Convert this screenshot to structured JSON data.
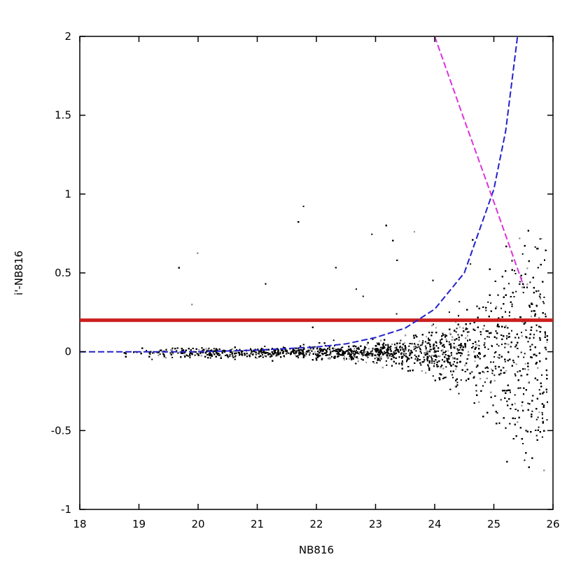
{
  "chart_data": {
    "type": "scatter",
    "title": "",
    "xlabel": "NB816",
    "ylabel": "i'-NB816",
    "xlim": [
      18,
      26
    ],
    "ylim": [
      -1,
      2
    ],
    "xticks": [
      18,
      19,
      20,
      21,
      22,
      23,
      24,
      25,
      26
    ],
    "xtick_labels": [
      "18",
      "19",
      "20",
      "21",
      "22",
      "23",
      "24",
      "25",
      "26"
    ],
    "yticks": [
      -1,
      -0.5,
      0,
      0.5,
      1,
      1.5,
      2
    ],
    "ytick_labels": [
      "-1",
      "-0.5",
      "0",
      "0.5",
      "1",
      "1.5",
      "2"
    ],
    "grid": false,
    "legend": "none",
    "series": [
      {
        "kind": "scatter",
        "color": "#000000",
        "description_only": true,
        "points_sample": [
          [
            19.0,
            0.01
          ],
          [
            19.5,
            0.03
          ],
          [
            20.0,
            -0.01
          ],
          [
            20.5,
            0.02
          ],
          [
            21.0,
            -0.02
          ],
          [
            21.5,
            0.05
          ],
          [
            22.0,
            0.0
          ],
          [
            22.5,
            -0.04
          ],
          [
            23.0,
            0.03
          ],
          [
            23.5,
            -0.06
          ],
          [
            24.0,
            0.08
          ],
          [
            24.5,
            -0.1
          ],
          [
            25.0,
            0.12
          ],
          [
            25.2,
            -0.3
          ],
          [
            23.8,
            0.3
          ],
          [
            24.3,
            0.35
          ],
          [
            24.9,
            0.45
          ],
          [
            22.7,
            0.25
          ],
          [
            25.5,
            -0.5
          ],
          [
            25.7,
            0.4
          ]
        ]
      },
      {
        "kind": "hline",
        "color": "#cc1f1f",
        "y": 0.2
      },
      {
        "kind": "line",
        "color": "#2222cc",
        "dashed": true,
        "x": [
          18,
          19,
          20,
          21,
          22,
          22.5,
          23,
          23.5,
          24,
          24.5,
          25,
          25.2,
          25.4
        ],
        "y": [
          0.0,
          0.0,
          0.0,
          0.01,
          0.03,
          0.05,
          0.09,
          0.15,
          0.27,
          0.5,
          1.03,
          1.4,
          2.0
        ]
      },
      {
        "kind": "line",
        "color": "#dd33dd",
        "dashed": true,
        "x": [
          24.0,
          24.5,
          25.0,
          25.5
        ],
        "y": [
          2.0,
          1.47,
          0.95,
          0.42
        ]
      }
    ]
  }
}
